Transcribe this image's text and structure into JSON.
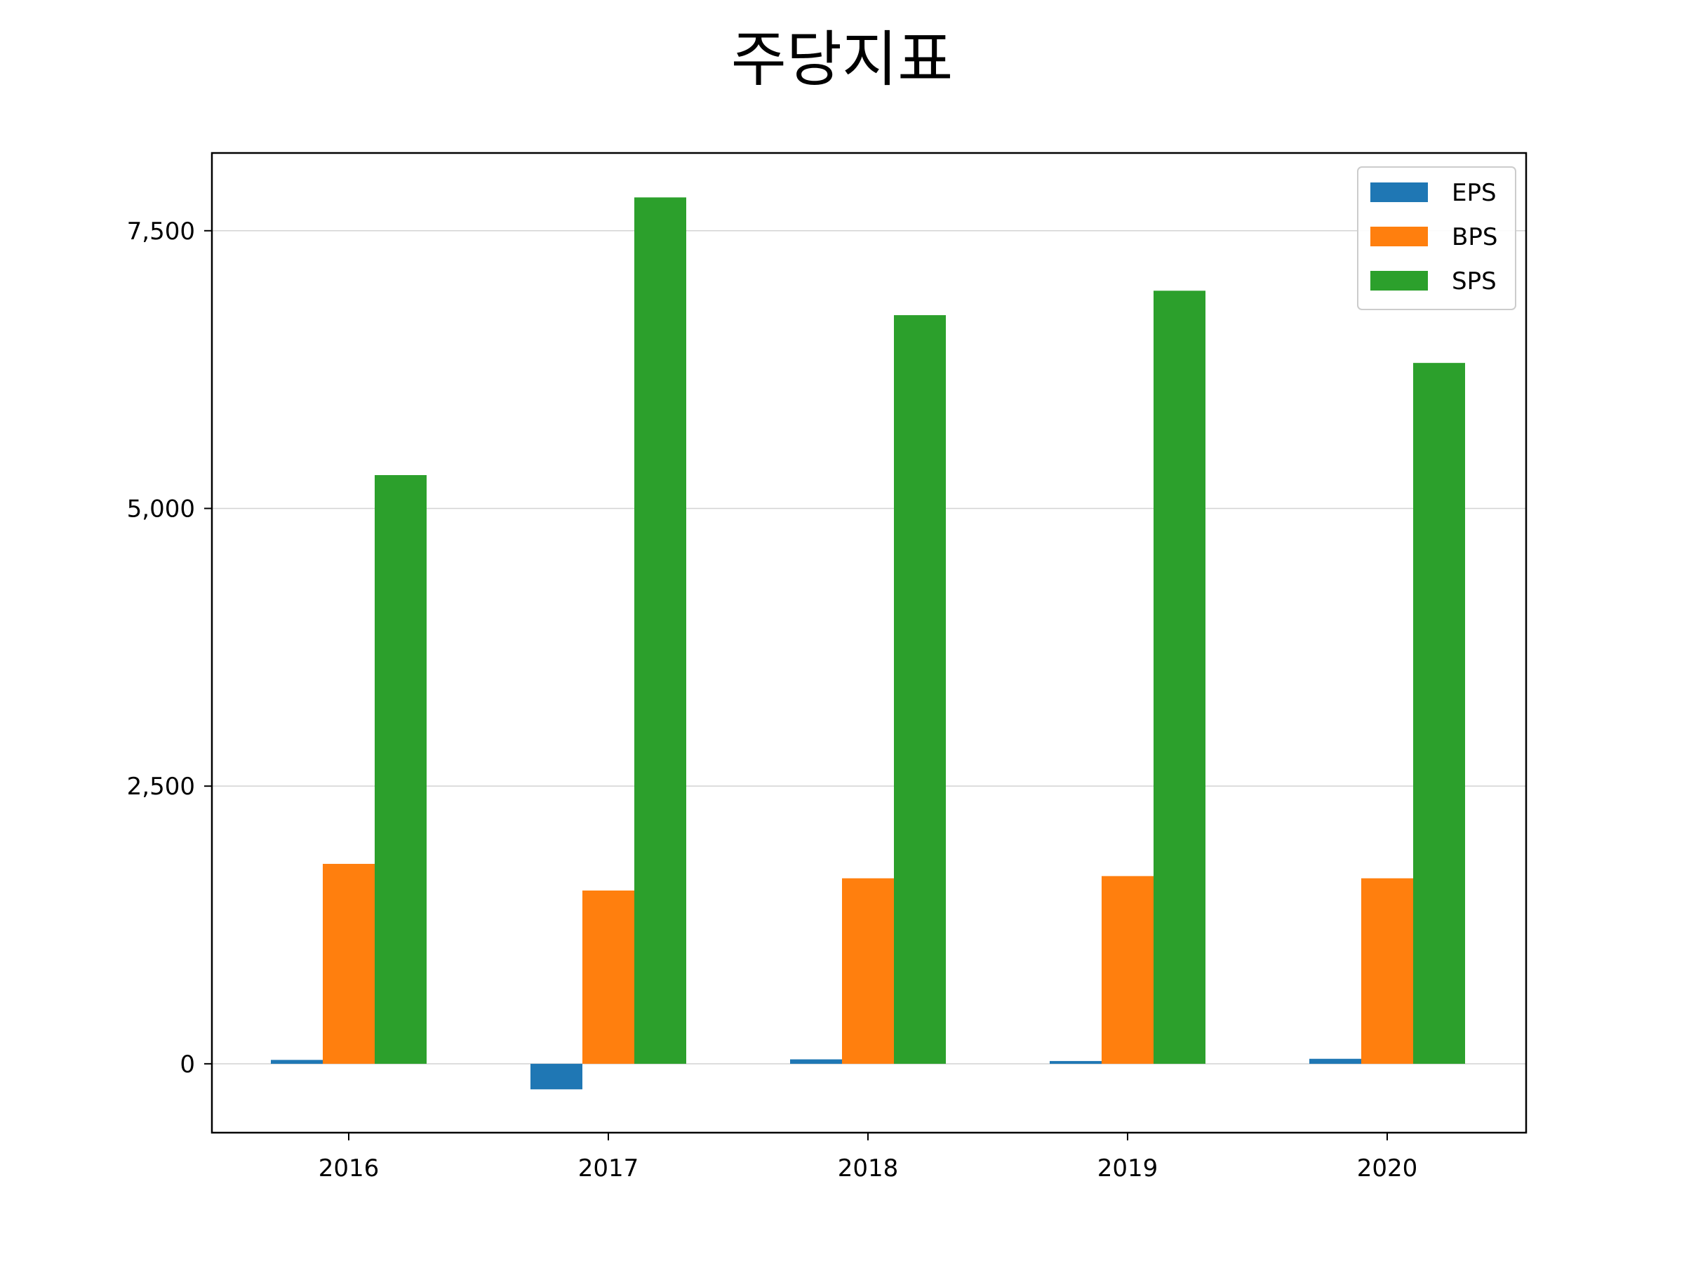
{
  "chart_data": {
    "type": "bar",
    "title": "주당지표",
    "xlabel": "",
    "ylabel": "",
    "categories": [
      "2016",
      "2017",
      "2018",
      "2019",
      "2020"
    ],
    "series": [
      {
        "name": "EPS",
        "color": "#1f77b4",
        "values": [
          35,
          -230,
          40,
          25,
          45
        ]
      },
      {
        "name": "BPS",
        "color": "#ff7f0e",
        "values": [
          1800,
          1560,
          1670,
          1690,
          1670
        ]
      },
      {
        "name": "SPS",
        "color": "#2ca02c",
        "values": [
          5300,
          7800,
          6740,
          6960,
          6310
        ]
      }
    ],
    "ylim": [
      -620,
      8200
    ],
    "yticks": [
      0,
      2500,
      5000,
      7500
    ],
    "ytick_labels": [
      "0",
      "2,500",
      "5,000",
      "7,500"
    ],
    "grid": "y",
    "legend_position": "top-right"
  }
}
